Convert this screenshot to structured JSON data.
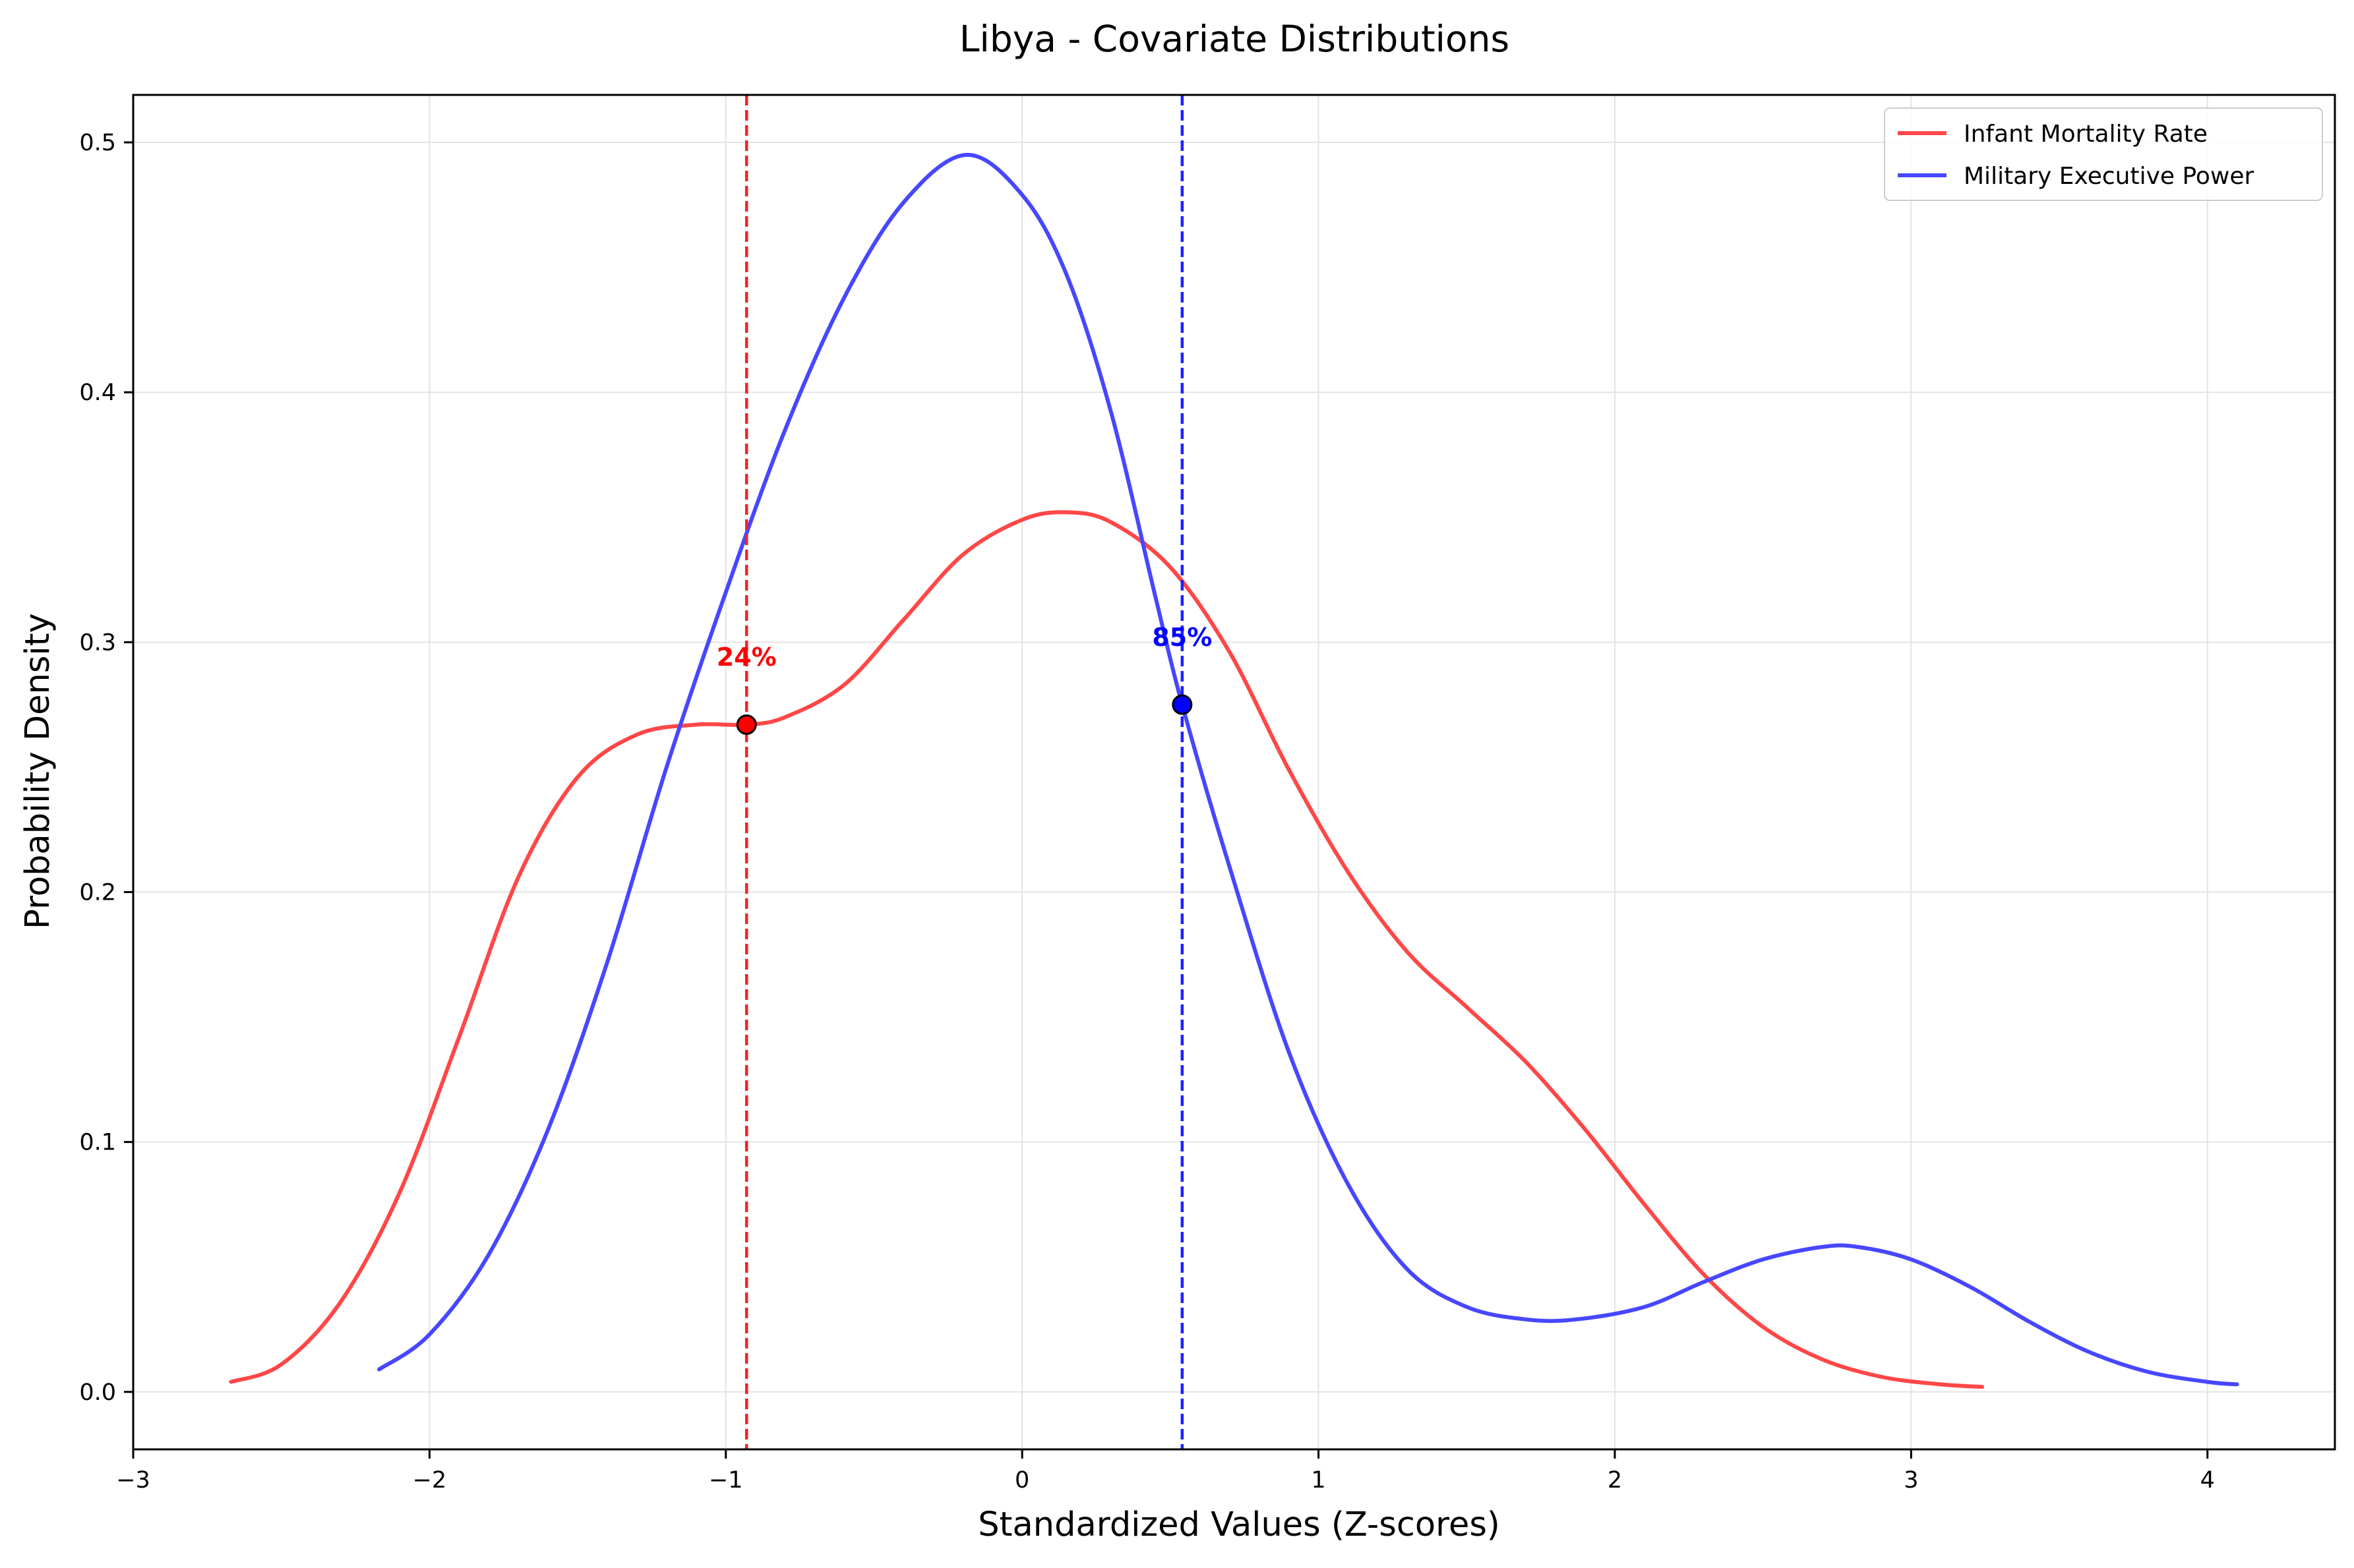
{
  "chart_data": {
    "type": "line",
    "title": "Libya - Covariate Distributions",
    "xlabel": "Standardized Values (Z-scores)",
    "ylabel": "Probability Density",
    "xlim": [
      -3.0,
      4.43
    ],
    "ylim": [
      -0.023,
      0.519
    ],
    "xticks": [
      -3,
      -2,
      -1,
      0,
      1,
      2,
      3,
      4
    ],
    "xtick_labels": [
      "−3",
      "−2",
      "−1",
      "0",
      "1",
      "2",
      "3",
      "4"
    ],
    "yticks": [
      0.0,
      0.1,
      0.2,
      0.3,
      0.4,
      0.5
    ],
    "ytick_labels": [
      "0.0",
      "0.1",
      "0.2",
      "0.3",
      "0.4",
      "0.5"
    ],
    "grid": true,
    "legend_position": "top-right",
    "series": [
      {
        "name": "Infant Mortality Rate",
        "color": "#ff4747",
        "points": [
          [
            -2.67,
            0.004
          ],
          [
            -2.5,
            0.011
          ],
          [
            -2.3,
            0.036
          ],
          [
            -2.1,
            0.08
          ],
          [
            -1.9,
            0.142
          ],
          [
            -1.7,
            0.206
          ],
          [
            -1.5,
            0.246
          ],
          [
            -1.3,
            0.263
          ],
          [
            -1.1,
            0.267
          ],
          [
            -0.93,
            0.267
          ],
          [
            -0.8,
            0.27
          ],
          [
            -0.6,
            0.283
          ],
          [
            -0.4,
            0.309
          ],
          [
            -0.2,
            0.335
          ],
          [
            0.0,
            0.349
          ],
          [
            0.15,
            0.352
          ],
          [
            0.3,
            0.348
          ],
          [
            0.5,
            0.33
          ],
          [
            0.7,
            0.296
          ],
          [
            0.9,
            0.249
          ],
          [
            1.1,
            0.208
          ],
          [
            1.3,
            0.176
          ],
          [
            1.5,
            0.154
          ],
          [
            1.7,
            0.132
          ],
          [
            1.9,
            0.105
          ],
          [
            2.1,
            0.075
          ],
          [
            2.3,
            0.047
          ],
          [
            2.5,
            0.026
          ],
          [
            2.7,
            0.013
          ],
          [
            2.9,
            0.006
          ],
          [
            3.1,
            0.003
          ],
          [
            3.24,
            0.002
          ]
        ]
      },
      {
        "name": "Military Executive Power",
        "color": "#4747ff",
        "points": [
          [
            -2.17,
            0.009
          ],
          [
            -2.0,
            0.023
          ],
          [
            -1.8,
            0.055
          ],
          [
            -1.6,
            0.105
          ],
          [
            -1.4,
            0.172
          ],
          [
            -1.2,
            0.25
          ],
          [
            -1.0,
            0.32
          ],
          [
            -0.8,
            0.385
          ],
          [
            -0.6,
            0.438
          ],
          [
            -0.4,
            0.476
          ],
          [
            -0.19,
            0.495
          ],
          [
            0.0,
            0.479
          ],
          [
            0.15,
            0.447
          ],
          [
            0.3,
            0.392
          ],
          [
            0.45,
            0.318
          ],
          [
            0.54,
            0.275
          ],
          [
            0.7,
            0.21
          ],
          [
            0.9,
            0.136
          ],
          [
            1.1,
            0.083
          ],
          [
            1.3,
            0.049
          ],
          [
            1.5,
            0.034
          ],
          [
            1.7,
            0.029
          ],
          [
            1.87,
            0.029
          ],
          [
            2.1,
            0.034
          ],
          [
            2.3,
            0.044
          ],
          [
            2.5,
            0.053
          ],
          [
            2.7,
            0.058
          ],
          [
            2.82,
            0.058
          ],
          [
            3.0,
            0.053
          ],
          [
            3.2,
            0.042
          ],
          [
            3.4,
            0.028
          ],
          [
            3.6,
            0.016
          ],
          [
            3.8,
            0.008
          ],
          [
            4.0,
            0.004
          ],
          [
            4.1,
            0.003
          ]
        ]
      }
    ],
    "markers": [
      {
        "series": "Infant Mortality Rate",
        "x": -0.93,
        "y": 0.267,
        "label": "24%",
        "label_y": 0.294,
        "color": "#ff0000",
        "line_color": "#ff2020"
      },
      {
        "series": "Military Executive Power",
        "x": 0.54,
        "y": 0.275,
        "label": "85%",
        "label_y": 0.302,
        "color": "#0000ff",
        "line_color": "#2020ff"
      }
    ]
  }
}
